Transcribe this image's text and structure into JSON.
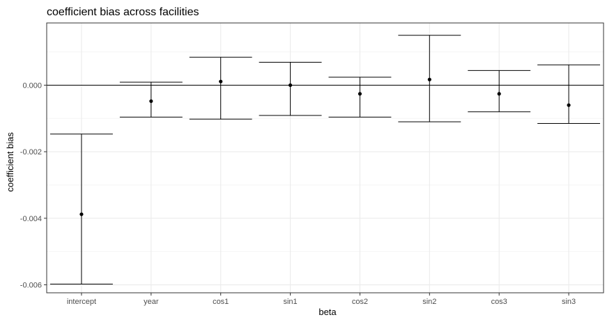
{
  "chart_data": {
    "type": "errorbar",
    "title": "coefficient bias across facilities",
    "xlabel": "beta",
    "ylabel": "coefficient bias",
    "categories": [
      "intercept",
      "year",
      "cos1",
      "sin1",
      "cos2",
      "sin2",
      "cos3",
      "sin3"
    ],
    "points": [
      {
        "category": "intercept",
        "value": -0.00388,
        "lower": -0.00598,
        "upper": -0.00147
      },
      {
        "category": "year",
        "value": -0.00048,
        "lower": -0.00096,
        "upper": 9e-05
      },
      {
        "category": "cos1",
        "value": 0.00011,
        "lower": -0.00102,
        "upper": 0.00084
      },
      {
        "category": "sin1",
        "value": 0.0,
        "lower": -0.00091,
        "upper": 0.00069
      },
      {
        "category": "cos2",
        "value": -0.00026,
        "lower": -0.00096,
        "upper": 0.00024
      },
      {
        "category": "sin2",
        "value": 0.00017,
        "lower": -0.0011,
        "upper": 0.0015
      },
      {
        "category": "cos3",
        "value": -0.00026,
        "lower": -0.0008,
        "upper": 0.00044
      },
      {
        "category": "sin3",
        "value": -0.0006,
        "lower": -0.00115,
        "upper": 0.00061
      }
    ],
    "y_ticks": [
      {
        "value": -0.006,
        "label": "-0.006"
      },
      {
        "value": -0.004,
        "label": "-0.004"
      },
      {
        "value": -0.002,
        "label": "-0.002"
      },
      {
        "value": 0.0,
        "label": "0.000"
      }
    ],
    "ylim": [
      -0.00624,
      0.00187
    ],
    "reference_line": 0,
    "grid": true,
    "legend": "none",
    "colors": {
      "mark": "#000000",
      "grid_major": "#ebebeb",
      "grid_minor": "#f5f5f5",
      "panel_border": "#333333"
    }
  }
}
